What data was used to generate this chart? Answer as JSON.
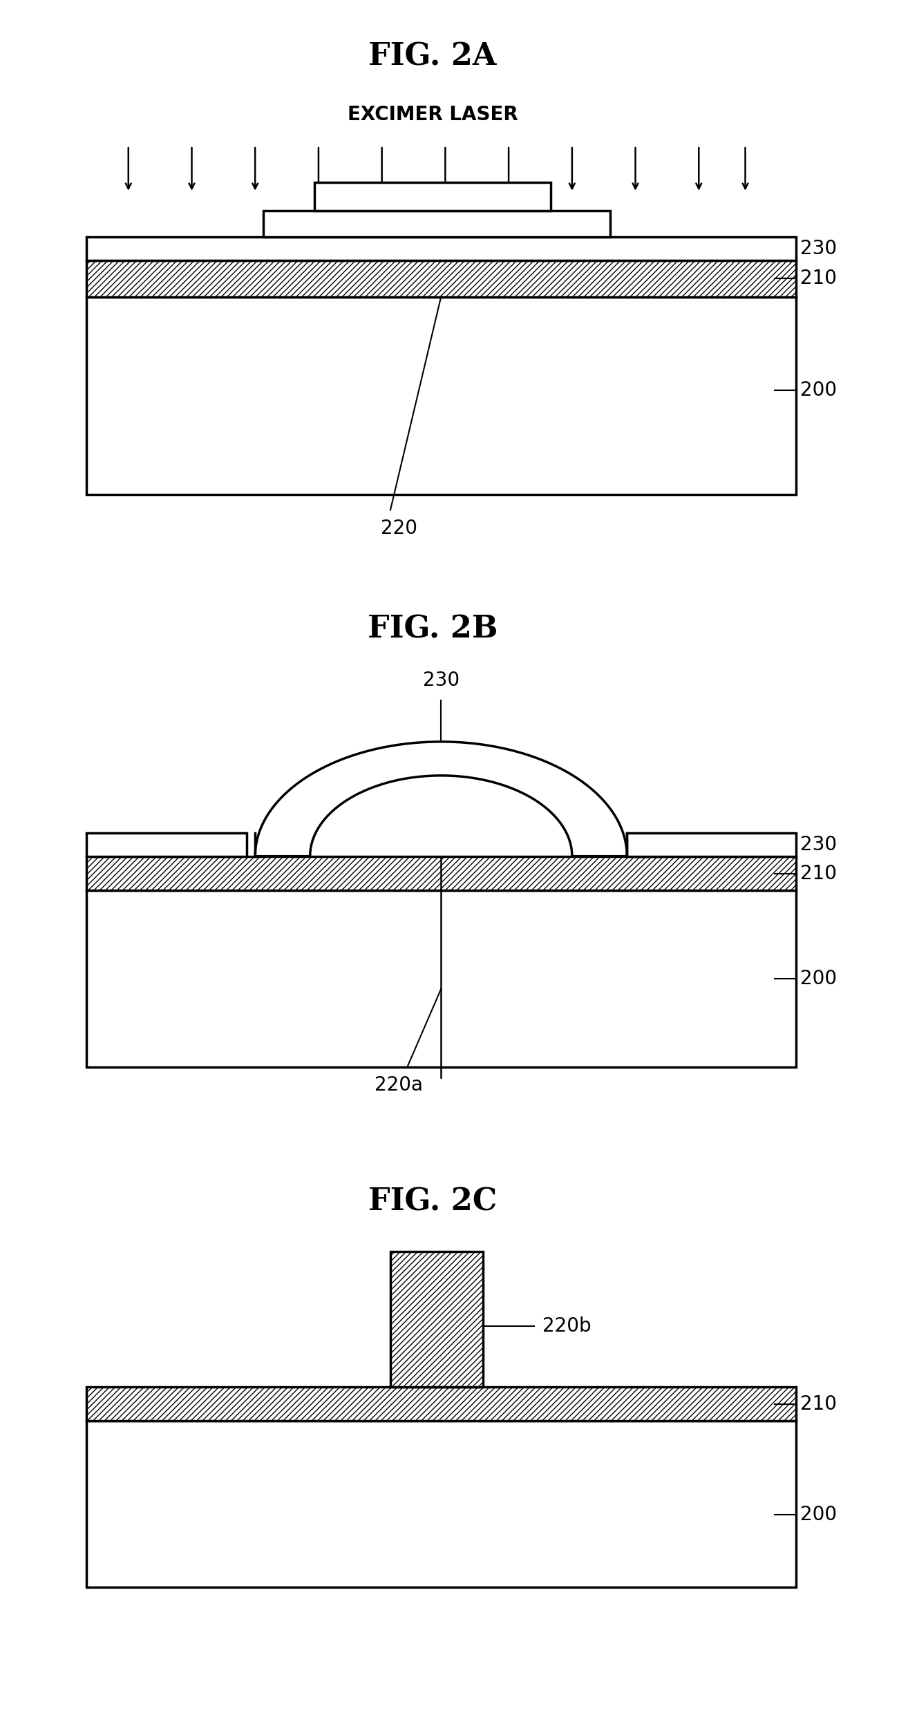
{
  "fig_title_A": "FIG. 2A",
  "fig_title_B": "FIG. 2B",
  "fig_title_C": "FIG. 2C",
  "label_excimer": "EXCIMER LASER",
  "bg_color": "#ffffff",
  "line_color": "#000000",
  "title_fontsize": 32,
  "label_fontsize": 20,
  "anno_fontsize": 20,
  "lw": 2.5
}
